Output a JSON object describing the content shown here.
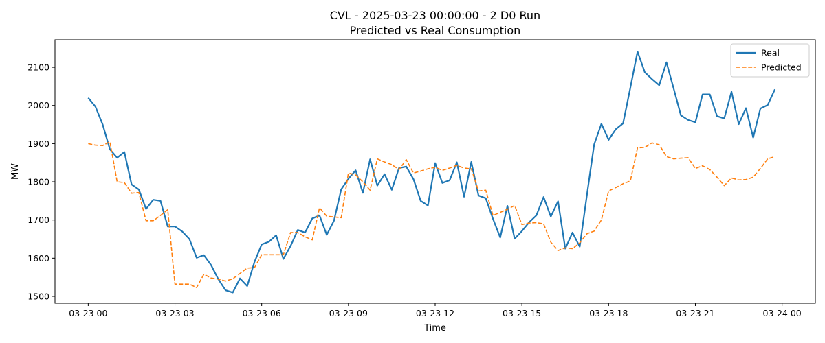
{
  "chart_data": {
    "type": "line",
    "title": "CVL - 2025-03-23 00:00:00 - 2 D0 Run",
    "subtitle": "Predicted vs Real Consumption",
    "xlabel": "Time",
    "ylabel": "MW",
    "xlim_hours": [
      -1.15,
      25.15
    ],
    "ylim": [
      1482,
      2172
    ],
    "x_tick_labels": [
      "03-23 00",
      "03-23 03",
      "03-23 06",
      "03-23 09",
      "03-23 12",
      "03-23 15",
      "03-23 18",
      "03-23 21",
      "03-24 00"
    ],
    "x_tick_hours": [
      0,
      3,
      6,
      9,
      12,
      15,
      18,
      21,
      24
    ],
    "y_ticks": [
      1500,
      1600,
      1700,
      1800,
      1900,
      2000,
      2100
    ],
    "interval_minutes": 15,
    "legend_position": "top-right",
    "grid": false,
    "series": [
      {
        "name": "Real",
        "color": "#1f77b4",
        "style": "solid",
        "values": [
          2020,
          1997,
          1950,
          1885,
          1863,
          1878,
          1793,
          1780,
          1729,
          1753,
          1750,
          1683,
          1683,
          1670,
          1650,
          1601,
          1608,
          1582,
          1545,
          1516,
          1510,
          1547,
          1527,
          1590,
          1636,
          1643,
          1660,
          1598,
          1632,
          1674,
          1667,
          1704,
          1712,
          1661,
          1698,
          1780,
          1808,
          1830,
          1771,
          1859,
          1790,
          1820,
          1779,
          1836,
          1840,
          1807,
          1750,
          1738,
          1849,
          1797,
          1804,
          1851,
          1761,
          1852,
          1764,
          1757,
          1703,
          1654,
          1737,
          1651,
          1671,
          1694,
          1712,
          1760,
          1709,
          1749,
          1625,
          1667,
          1630,
          1766,
          1898,
          1952,
          1910,
          1938,
          1953,
          2046,
          2141,
          2087,
          2069,
          2053,
          2113,
          2044,
          1974,
          1962,
          1956,
          2029,
          2029,
          1972,
          1966,
          2036,
          1951,
          1993,
          1916,
          1992,
          2001,
          2042
        ]
      },
      {
        "name": "Predicted",
        "color": "#ff7f0e",
        "style": "dashed",
        "values": [
          1900,
          1896,
          1895,
          1905,
          1800,
          1798,
          1770,
          1772,
          1698,
          1698,
          1712,
          1727,
          1532,
          1532,
          1532,
          1523,
          1558,
          1548,
          1545,
          1540,
          1546,
          1560,
          1574,
          1575,
          1609,
          1609,
          1609,
          1609,
          1667,
          1667,
          1656,
          1648,
          1732,
          1710,
          1708,
          1706,
          1823,
          1818,
          1800,
          1778,
          1860,
          1852,
          1845,
          1832,
          1858,
          1823,
          1828,
          1834,
          1838,
          1830,
          1836,
          1843,
          1836,
          1834,
          1776,
          1778,
          1712,
          1720,
          1728,
          1738,
          1688,
          1692,
          1693,
          1690,
          1642,
          1620,
          1627,
          1625,
          1640,
          1664,
          1671,
          1700,
          1776,
          1785,
          1795,
          1802,
          1889,
          1890,
          1902,
          1897,
          1866,
          1860,
          1862,
          1863,
          1835,
          1842,
          1832,
          1812,
          1790,
          1810,
          1805,
          1806,
          1812,
          1835,
          1860,
          1866
        ]
      }
    ]
  }
}
